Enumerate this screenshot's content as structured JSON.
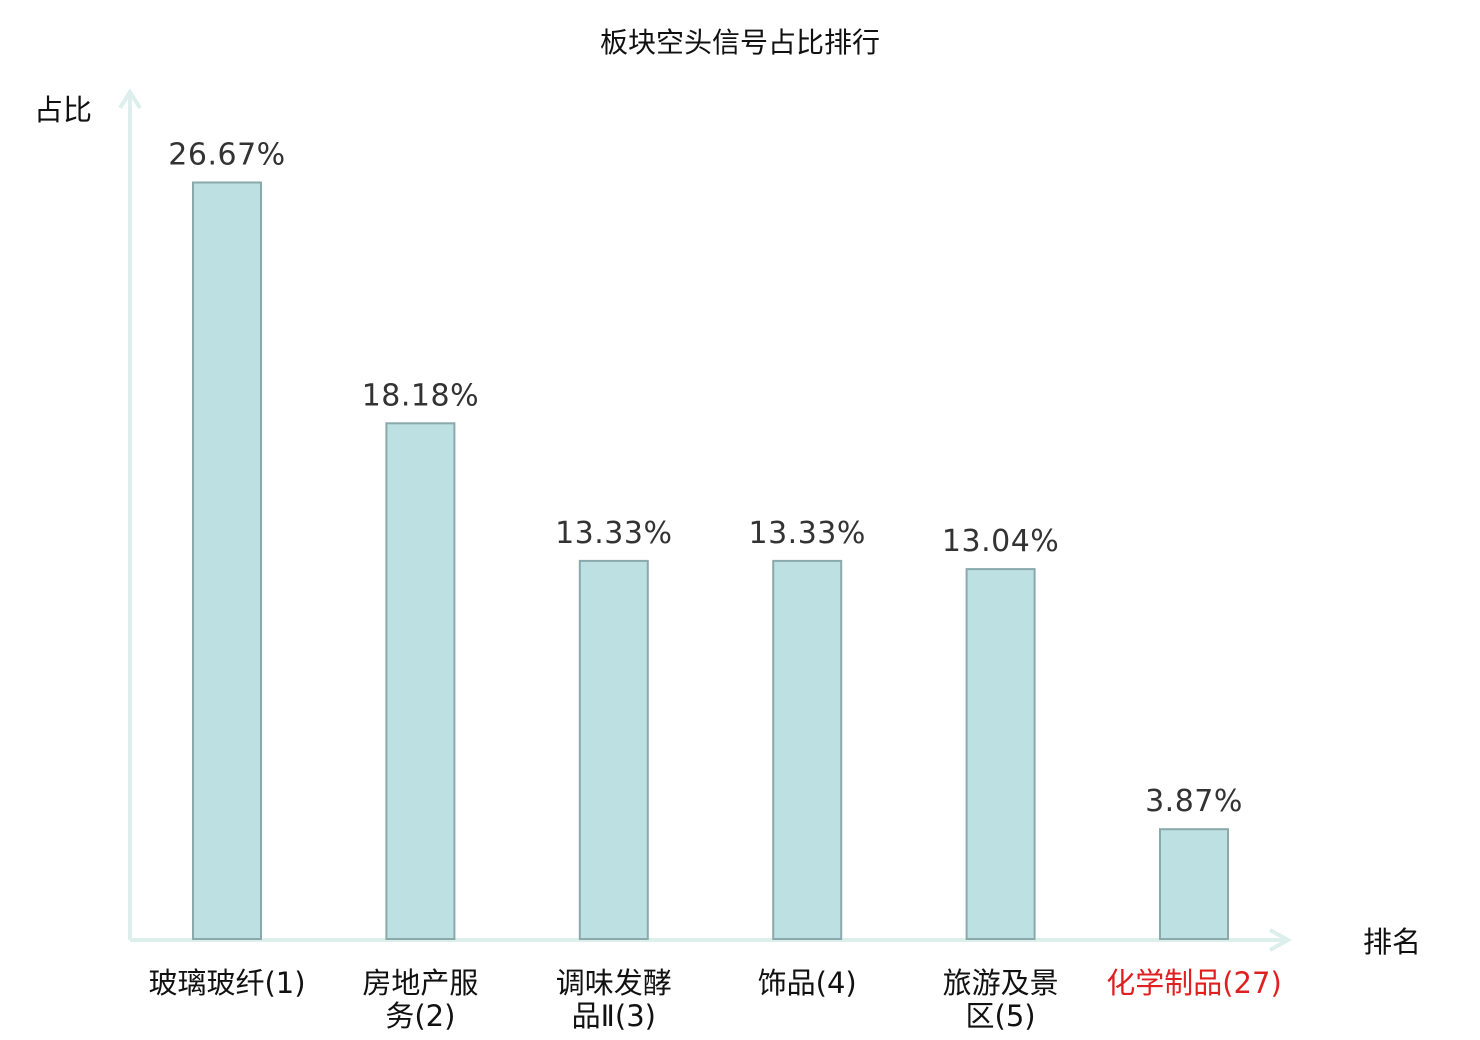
{
  "chart_data": {
    "type": "bar",
    "title": "板块空头信号占比排行",
    "ylabel": "占比",
    "xlabel": "排名",
    "ylim": [
      0,
      30
    ],
    "grid": false,
    "categories": [
      [
        "玻璃玻纤(1)"
      ],
      [
        "房地产服",
        "务(2)"
      ],
      [
        "调味发酵",
        "品Ⅱ(3)"
      ],
      [
        "饰品(4)"
      ],
      [
        "旅游及景",
        "区(5)"
      ],
      [
        "化学制品(27)"
      ]
    ],
    "values": [
      26.67,
      18.18,
      13.33,
      13.33,
      13.04,
      3.87
    ],
    "value_labels": [
      "26.67%",
      "18.18%",
      "13.33%",
      "13.33%",
      "13.04%",
      "3.87%"
    ],
    "highlight_index": 5
  },
  "colors": {
    "bar_fill": "#bde0e3",
    "bar_stroke": "#8aa9ab",
    "axis": "#dcefeb",
    "highlight_text": "#e02020"
  }
}
